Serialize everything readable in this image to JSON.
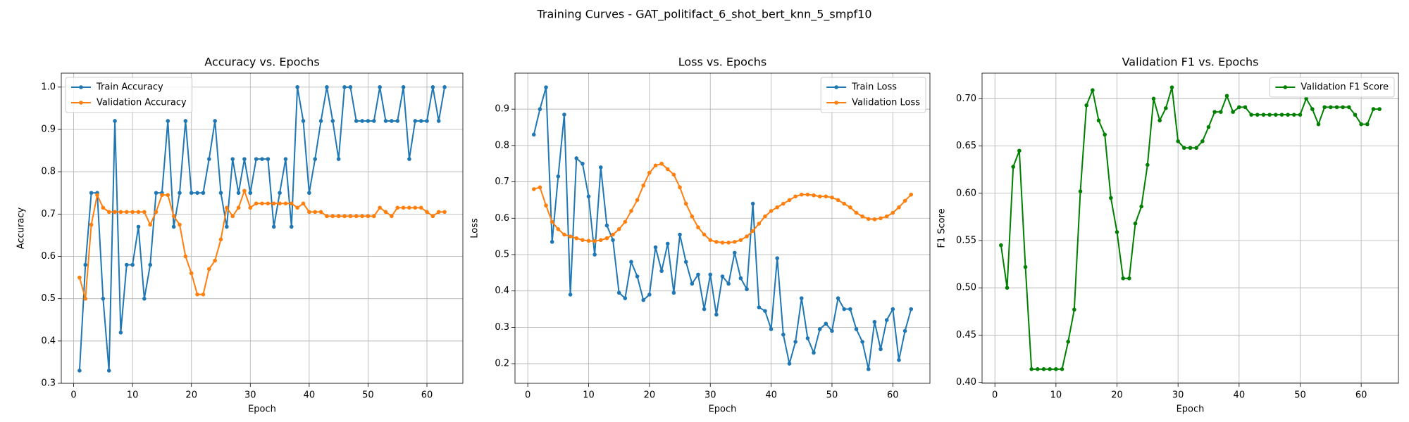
{
  "title": "Training Curves - GAT_politifact_6_shot_bert_knn_5_smpf10",
  "chart_data": [
    {
      "type": "line",
      "title": "Accuracy vs. Epochs",
      "x_label": "Epoch",
      "y_label": "Accuracy",
      "grid": true,
      "legend": "upper left",
      "marker": "o",
      "x": [
        1,
        2,
        3,
        4,
        5,
        6,
        7,
        8,
        9,
        10,
        11,
        12,
        13,
        14,
        15,
        16,
        17,
        18,
        19,
        20,
        21,
        22,
        23,
        24,
        25,
        26,
        27,
        28,
        29,
        30,
        31,
        32,
        33,
        34,
        35,
        36,
        37,
        38,
        39,
        40,
        41,
        42,
        43,
        44,
        45,
        46,
        47,
        48,
        49,
        50,
        51,
        52,
        53,
        54,
        55,
        56,
        57,
        58,
        59,
        60,
        61,
        62,
        63
      ],
      "xlim": [
        -2.1,
        66.1
      ],
      "xticks": [
        0,
        10,
        20,
        30,
        40,
        50,
        60
      ],
      "ylim": [
        0.3,
        1.033
      ],
      "yticks": [
        0.3,
        0.4,
        0.5,
        0.6,
        0.7,
        0.8,
        0.9,
        {
          "value": 1,
          "label": "1.0"
        }
      ],
      "series": [
        {
          "name": "Train Accuracy",
          "color": "#1f77b4",
          "values": [
            0.33,
            0.58,
            0.75,
            0.75,
            0.5,
            0.33,
            0.92,
            0.42,
            0.58,
            0.58,
            0.67,
            0.5,
            0.58,
            0.75,
            0.75,
            0.92,
            0.67,
            0.75,
            0.92,
            0.75,
            0.75,
            0.75,
            0.83,
            0.92,
            0.75,
            0.67,
            0.83,
            0.75,
            0.83,
            0.75,
            0.83,
            0.83,
            0.83,
            0.67,
            0.75,
            0.83,
            0.67,
            1.0,
            0.92,
            0.75,
            0.83,
            0.92,
            1.0,
            0.92,
            0.83,
            1.0,
            1.0,
            0.92,
            0.92,
            0.92,
            0.92,
            1.0,
            0.92,
            0.92,
            0.92,
            1.0,
            0.83,
            0.92,
            0.92,
            0.92,
            1.0,
            0.92,
            1.0
          ]
        },
        {
          "name": "Validation Accuracy",
          "color": "#ff7f0e",
          "values": [
            0.55,
            0.5,
            0.675,
            0.745,
            0.715,
            0.705,
            0.705,
            0.705,
            0.705,
            0.705,
            0.705,
            0.705,
            0.675,
            0.705,
            0.745,
            0.745,
            0.695,
            0.675,
            0.6,
            0.56,
            0.51,
            0.51,
            0.57,
            0.59,
            0.64,
            0.715,
            0.695,
            0.715,
            0.755,
            0.715,
            0.725,
            0.725,
            0.725,
            0.725,
            0.725,
            0.725,
            0.725,
            0.715,
            0.725,
            0.705,
            0.705,
            0.705,
            0.695,
            0.695,
            0.695,
            0.695,
            0.695,
            0.695,
            0.695,
            0.695,
            0.695,
            0.715,
            0.705,
            0.695,
            0.715,
            0.715,
            0.715,
            0.715,
            0.715,
            0.705,
            0.695,
            0.705,
            0.705
          ]
        }
      ]
    },
    {
      "type": "line",
      "title": "Loss vs. Epochs",
      "x_label": "Epoch",
      "y_label": "Loss",
      "grid": true,
      "legend": "upper right",
      "marker": "o",
      "x": [
        1,
        2,
        3,
        4,
        5,
        6,
        7,
        8,
        9,
        10,
        11,
        12,
        13,
        14,
        15,
        16,
        17,
        18,
        19,
        20,
        21,
        22,
        23,
        24,
        25,
        26,
        27,
        28,
        29,
        30,
        31,
        32,
        33,
        34,
        35,
        36,
        37,
        38,
        39,
        40,
        41,
        42,
        43,
        44,
        45,
        46,
        47,
        48,
        49,
        50,
        51,
        52,
        53,
        54,
        55,
        56,
        57,
        58,
        59,
        60,
        61,
        62,
        63
      ],
      "xlim": [
        -2.1,
        66.1
      ],
      "xticks": [
        0,
        10,
        20,
        30,
        40,
        50,
        60
      ],
      "ylim": [
        0.146,
        0.999
      ],
      "yticks": [
        0.2,
        0.3,
        0.4,
        0.5,
        0.6,
        0.7,
        0.8,
        0.9
      ],
      "series": [
        {
          "name": "Train Loss",
          "color": "#1f77b4",
          "values": [
            0.83,
            0.9,
            0.96,
            0.535,
            0.715,
            0.885,
            0.39,
            0.765,
            0.75,
            0.66,
            0.5,
            0.74,
            0.58,
            0.54,
            0.395,
            0.38,
            0.48,
            0.44,
            0.375,
            0.39,
            0.52,
            0.455,
            0.53,
            0.395,
            0.555,
            0.48,
            0.42,
            0.445,
            0.35,
            0.445,
            0.335,
            0.44,
            0.42,
            0.505,
            0.435,
            0.405,
            0.64,
            0.355,
            0.345,
            0.295,
            0.49,
            0.28,
            0.2,
            0.26,
            0.38,
            0.27,
            0.23,
            0.295,
            0.31,
            0.29,
            0.38,
            0.35,
            0.35,
            0.295,
            0.26,
            0.185,
            0.315,
            0.24,
            0.32,
            0.35,
            0.21,
            0.29,
            0.35
          ]
        },
        {
          "name": "Validation Loss",
          "color": "#ff7f0e",
          "values": [
            0.68,
            0.685,
            0.635,
            0.59,
            0.57,
            0.555,
            0.55,
            0.545,
            0.54,
            0.538,
            0.537,
            0.54,
            0.545,
            0.555,
            0.57,
            0.59,
            0.62,
            0.65,
            0.69,
            0.725,
            0.745,
            0.75,
            0.735,
            0.72,
            0.685,
            0.64,
            0.605,
            0.575,
            0.555,
            0.54,
            0.535,
            0.533,
            0.533,
            0.535,
            0.54,
            0.55,
            0.565,
            0.585,
            0.605,
            0.62,
            0.63,
            0.64,
            0.65,
            0.66,
            0.665,
            0.665,
            0.663,
            0.66,
            0.66,
            0.657,
            0.65,
            0.64,
            0.63,
            0.615,
            0.605,
            0.598,
            0.597,
            0.6,
            0.605,
            0.615,
            0.63,
            0.648,
            0.665
          ]
        }
      ]
    },
    {
      "type": "line",
      "title": "Validation F1 vs. Epochs",
      "x_label": "Epoch",
      "y_label": "F1 Score",
      "grid": true,
      "legend": "upper right",
      "marker": "o",
      "x": [
        1,
        2,
        3,
        4,
        5,
        6,
        7,
        8,
        9,
        10,
        11,
        12,
        13,
        14,
        15,
        16,
        17,
        18,
        19,
        20,
        21,
        22,
        23,
        24,
        25,
        26,
        27,
        28,
        29,
        30,
        31,
        32,
        33,
        34,
        35,
        36,
        37,
        38,
        39,
        40,
        41,
        42,
        43,
        44,
        45,
        46,
        47,
        48,
        49,
        50,
        51,
        52,
        53,
        54,
        55,
        56,
        57,
        58,
        59,
        60,
        61,
        62,
        63
      ],
      "xlim": [
        -2.1,
        66.1
      ],
      "xticks": [
        0,
        10,
        20,
        30,
        40,
        50,
        60
      ],
      "ylim": [
        0.399,
        0.727
      ],
      "yticks": [
        {
          "value": 0.4,
          "label": "0.40"
        },
        0.45,
        {
          "value": 0.5,
          "label": "0.50"
        },
        0.55,
        {
          "value": 0.6,
          "label": "0.60"
        },
        0.65,
        {
          "value": 0.7,
          "label": "0.70"
        }
      ],
      "series": [
        {
          "name": "Validation F1 Score",
          "color": "#008000",
          "values": [
            0.545,
            0.5,
            0.628,
            0.645,
            0.522,
            0.414,
            0.414,
            0.414,
            0.414,
            0.414,
            0.414,
            0.443,
            0.477,
            0.602,
            0.693,
            0.709,
            0.677,
            0.662,
            0.595,
            0.559,
            0.51,
            0.51,
            0.568,
            0.586,
            0.63,
            0.7,
            0.677,
            0.69,
            0.712,
            0.655,
            0.648,
            0.648,
            0.648,
            0.655,
            0.67,
            0.686,
            0.686,
            0.703,
            0.686,
            0.691,
            0.691,
            0.683,
            0.683,
            0.683,
            0.683,
            0.683,
            0.683,
            0.683,
            0.683,
            0.683,
            0.7,
            0.689,
            0.673,
            0.691,
            0.691,
            0.691,
            0.691,
            0.691,
            0.683,
            0.673,
            0.673,
            0.689,
            0.689
          ]
        }
      ]
    }
  ]
}
